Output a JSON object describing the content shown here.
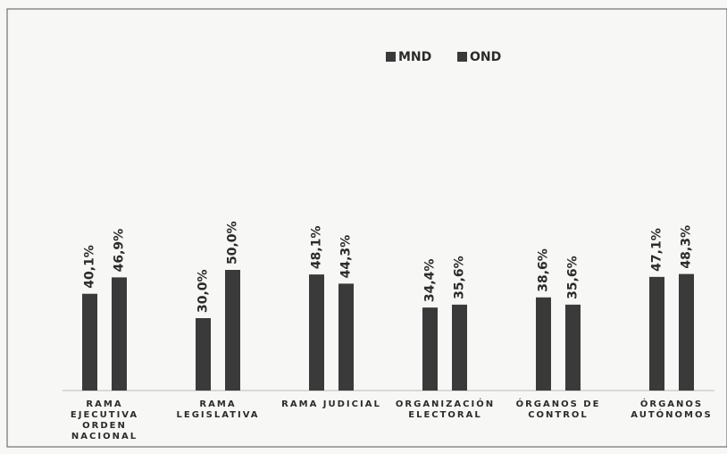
{
  "chart_data": {
    "type": "bar",
    "categories": [
      "RAMA EJECUTIVA ORDEN NACIONAL",
      "RAMA LEGISLATIVA",
      "RAMA JUDICIAL",
      "ORGANIZACIÓN ELECTORAL",
      "ÓRGANOS DE CONTROL",
      "ÓRGANOS AUTÓNOMOS"
    ],
    "series": [
      {
        "name": "MND",
        "color": "#3a3a3a",
        "values": [
          40.1,
          30.0,
          48.1,
          34.4,
          38.6,
          47.1
        ],
        "value_labels": [
          "40,1%",
          "30,0%",
          "48,1%",
          "34,4%",
          "38,6%",
          "47,1%"
        ]
      },
      {
        "name": "OND",
        "color": "#3a3a3a",
        "values": [
          46.9,
          50.0,
          44.3,
          35.6,
          35.6,
          48.3
        ],
        "value_labels": [
          "46,9%",
          "50,0%",
          "44,3%",
          "35,6%",
          "35,6%",
          "48,3%"
        ]
      }
    ],
    "legend": "top"
  }
}
